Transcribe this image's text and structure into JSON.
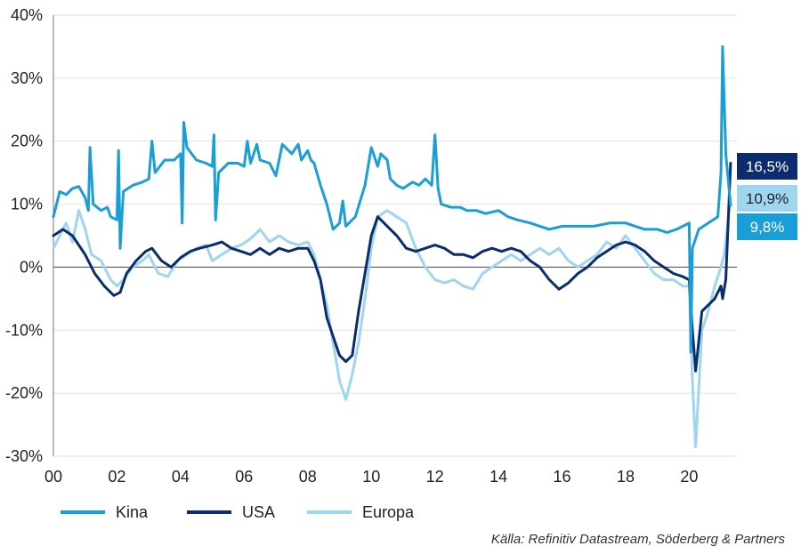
{
  "source_text": "Källa: Refinitiv Datastream, Söderberg & Partners",
  "colors": {
    "kina": "#1a9ed8",
    "usa": "#0b2d6e",
    "europa": "#9fd5ee"
  },
  "chart_data": {
    "type": "line",
    "xlim": [
      0,
      21.5
    ],
    "ylim": [
      -30,
      40
    ],
    "x_ticks": [
      0,
      2,
      4,
      6,
      8,
      10,
      12,
      14,
      16,
      18,
      20
    ],
    "x_tick_labels": [
      "00",
      "02",
      "04",
      "06",
      "08",
      "10",
      "12",
      "14",
      "16",
      "18",
      "20"
    ],
    "y_ticks": [
      -30,
      -20,
      -10,
      0,
      10,
      20,
      30,
      40
    ],
    "y_tick_labels": [
      "-30%",
      "-20%",
      "-10%",
      "0%",
      "10%",
      "20%",
      "30%",
      "40%"
    ],
    "legend_position": "bottom-left",
    "series": [
      {
        "name": "Kina",
        "end_label": "9,8%",
        "points": [
          [
            0,
            8
          ],
          [
            0.2,
            12
          ],
          [
            0.4,
            11.5
          ],
          [
            0.6,
            12.5
          ],
          [
            0.8,
            12.8
          ],
          [
            1,
            11
          ],
          [
            1.1,
            9
          ],
          [
            1.15,
            19
          ],
          [
            1.25,
            10
          ],
          [
            1.5,
            9
          ],
          [
            1.7,
            9.5
          ],
          [
            1.8,
            8
          ],
          [
            2,
            7.5
          ],
          [
            2.05,
            18.5
          ],
          [
            2.1,
            3
          ],
          [
            2.2,
            12
          ],
          [
            2.5,
            13
          ],
          [
            2.8,
            13.5
          ],
          [
            3,
            14
          ],
          [
            3.1,
            20
          ],
          [
            3.2,
            15
          ],
          [
            3.5,
            17
          ],
          [
            3.8,
            17
          ],
          [
            4,
            18
          ],
          [
            4.05,
            7
          ],
          [
            4.1,
            23
          ],
          [
            4.2,
            19
          ],
          [
            4.5,
            17
          ],
          [
            4.8,
            16.5
          ],
          [
            5,
            16
          ],
          [
            5.05,
            21
          ],
          [
            5.1,
            7.5
          ],
          [
            5.2,
            15
          ],
          [
            5.5,
            16.5
          ],
          [
            5.8,
            16.5
          ],
          [
            6,
            16
          ],
          [
            6.1,
            20
          ],
          [
            6.2,
            16.5
          ],
          [
            6.4,
            19.5
          ],
          [
            6.5,
            17
          ],
          [
            6.8,
            16.5
          ],
          [
            7,
            14.5
          ],
          [
            7.2,
            19.5
          ],
          [
            7.5,
            18
          ],
          [
            7.7,
            19.5
          ],
          [
            7.8,
            17
          ],
          [
            8,
            18.5
          ],
          [
            8.1,
            17
          ],
          [
            8.2,
            16.5
          ],
          [
            8.4,
            13
          ],
          [
            8.6,
            10
          ],
          [
            8.8,
            6
          ],
          [
            9,
            7
          ],
          [
            9.1,
            10.5
          ],
          [
            9.2,
            6.5
          ],
          [
            9.5,
            8
          ],
          [
            9.8,
            13
          ],
          [
            10,
            19
          ],
          [
            10.2,
            16
          ],
          [
            10.3,
            18
          ],
          [
            10.5,
            17
          ],
          [
            10.6,
            14
          ],
          [
            10.8,
            13
          ],
          [
            11,
            12.5
          ],
          [
            11.3,
            13.5
          ],
          [
            11.5,
            13
          ],
          [
            11.7,
            14
          ],
          [
            11.9,
            13
          ],
          [
            12,
            21
          ],
          [
            12.1,
            12.5
          ],
          [
            12.2,
            10
          ],
          [
            12.5,
            9.5
          ],
          [
            12.8,
            9.5
          ],
          [
            13,
            9
          ],
          [
            13.3,
            9
          ],
          [
            13.6,
            8.5
          ],
          [
            14,
            9
          ],
          [
            14.3,
            8
          ],
          [
            14.6,
            7.5
          ],
          [
            15,
            7
          ],
          [
            15.3,
            6.5
          ],
          [
            15.6,
            6
          ],
          [
            16,
            6.5
          ],
          [
            16.5,
            6.5
          ],
          [
            17,
            6.5
          ],
          [
            17.5,
            7
          ],
          [
            18,
            7
          ],
          [
            18.3,
            6.5
          ],
          [
            18.6,
            6
          ],
          [
            19,
            6
          ],
          [
            19.3,
            5.5
          ],
          [
            19.6,
            6
          ],
          [
            19.8,
            6.5
          ],
          [
            20,
            7
          ],
          [
            20.05,
            -13.5
          ],
          [
            20.1,
            3
          ],
          [
            20.3,
            6
          ],
          [
            20.6,
            7
          ],
          [
            20.9,
            8
          ],
          [
            21,
            15
          ],
          [
            21.05,
            35
          ],
          [
            21.15,
            18
          ],
          [
            21.3,
            9.8
          ]
        ]
      },
      {
        "name": "USA",
        "end_label": "16,5%",
        "points": [
          [
            0,
            5
          ],
          [
            0.3,
            6
          ],
          [
            0.6,
            5
          ],
          [
            1,
            2
          ],
          [
            1.3,
            -1
          ],
          [
            1.6,
            -3
          ],
          [
            1.9,
            -4.5
          ],
          [
            2.1,
            -4
          ],
          [
            2.3,
            -1
          ],
          [
            2.6,
            1
          ],
          [
            2.9,
            2.5
          ],
          [
            3.1,
            3
          ],
          [
            3.4,
            1
          ],
          [
            3.7,
            0
          ],
          [
            4,
            1.5
          ],
          [
            4.3,
            2.5
          ],
          [
            4.6,
            3
          ],
          [
            5,
            3.5
          ],
          [
            5.3,
            4
          ],
          [
            5.6,
            3
          ],
          [
            5.9,
            2.5
          ],
          [
            6.2,
            2
          ],
          [
            6.5,
            3
          ],
          [
            6.8,
            2
          ],
          [
            7.1,
            3
          ],
          [
            7.4,
            2.5
          ],
          [
            7.7,
            3
          ],
          [
            8,
            3
          ],
          [
            8.2,
            1
          ],
          [
            8.4,
            -2
          ],
          [
            8.6,
            -8
          ],
          [
            8.8,
            -11
          ],
          [
            9,
            -14
          ],
          [
            9.2,
            -15
          ],
          [
            9.4,
            -14
          ],
          [
            9.6,
            -7
          ],
          [
            9.8,
            -1
          ],
          [
            10,
            5
          ],
          [
            10.2,
            8
          ],
          [
            10.4,
            7
          ],
          [
            10.6,
            6
          ],
          [
            10.8,
            5
          ],
          [
            11.1,
            3
          ],
          [
            11.4,
            2.5
          ],
          [
            11.7,
            3
          ],
          [
            12,
            3.5
          ],
          [
            12.3,
            3
          ],
          [
            12.6,
            2
          ],
          [
            12.9,
            2
          ],
          [
            13.2,
            1.5
          ],
          [
            13.5,
            2.5
          ],
          [
            13.8,
            3
          ],
          [
            14.1,
            2.5
          ],
          [
            14.4,
            3
          ],
          [
            14.7,
            2.5
          ],
          [
            15,
            1
          ],
          [
            15.3,
            0
          ],
          [
            15.6,
            -2
          ],
          [
            15.9,
            -3.5
          ],
          [
            16.2,
            -2.5
          ],
          [
            16.5,
            -1
          ],
          [
            16.8,
            0
          ],
          [
            17.1,
            1.5
          ],
          [
            17.4,
            2.5
          ],
          [
            17.7,
            3.5
          ],
          [
            18,
            4
          ],
          [
            18.3,
            3.5
          ],
          [
            18.6,
            2.5
          ],
          [
            18.9,
            1
          ],
          [
            19.2,
            0
          ],
          [
            19.5,
            -1
          ],
          [
            19.8,
            -1.5
          ],
          [
            20,
            -2
          ],
          [
            20.1,
            -10
          ],
          [
            20.2,
            -16.5
          ],
          [
            20.4,
            -7
          ],
          [
            20.6,
            -6
          ],
          [
            20.8,
            -5
          ],
          [
            21,
            -3
          ],
          [
            21.05,
            -5
          ],
          [
            21.15,
            -2
          ],
          [
            21.3,
            16.5
          ]
        ]
      },
      {
        "name": "Europa",
        "end_label": "10,9%",
        "points": [
          [
            0,
            3
          ],
          [
            0.2,
            5
          ],
          [
            0.4,
            7
          ],
          [
            0.6,
            4
          ],
          [
            0.8,
            9
          ],
          [
            1,
            6
          ],
          [
            1.2,
            2
          ],
          [
            1.5,
            1
          ],
          [
            1.8,
            -2
          ],
          [
            2,
            -3
          ],
          [
            2.2,
            -2
          ],
          [
            2.5,
            0
          ],
          [
            2.8,
            1
          ],
          [
            3,
            2
          ],
          [
            3.3,
            -1
          ],
          [
            3.6,
            -1.5
          ],
          [
            3.9,
            1
          ],
          [
            4.2,
            2
          ],
          [
            4.5,
            3
          ],
          [
            4.8,
            3.5
          ],
          [
            5,
            1
          ],
          [
            5.3,
            2
          ],
          [
            5.6,
            3
          ],
          [
            5.9,
            3.5
          ],
          [
            6.2,
            4.5
          ],
          [
            6.5,
            6
          ],
          [
            6.8,
            4
          ],
          [
            7.1,
            5
          ],
          [
            7.4,
            4
          ],
          [
            7.7,
            3.5
          ],
          [
            8,
            4
          ],
          [
            8.2,
            2
          ],
          [
            8.4,
            -2
          ],
          [
            8.6,
            -6
          ],
          [
            8.8,
            -12
          ],
          [
            9,
            -18
          ],
          [
            9.2,
            -21
          ],
          [
            9.4,
            -17
          ],
          [
            9.6,
            -12
          ],
          [
            9.8,
            -5
          ],
          [
            10,
            3
          ],
          [
            10.2,
            8
          ],
          [
            10.5,
            9
          ],
          [
            10.8,
            8
          ],
          [
            11.1,
            7
          ],
          [
            11.4,
            3
          ],
          [
            11.7,
            0
          ],
          [
            12,
            -2
          ],
          [
            12.3,
            -2.5
          ],
          [
            12.6,
            -2
          ],
          [
            12.9,
            -3
          ],
          [
            13.2,
            -3.5
          ],
          [
            13.5,
            -1
          ],
          [
            13.8,
            0
          ],
          [
            14.1,
            1
          ],
          [
            14.4,
            2
          ],
          [
            14.7,
            1
          ],
          [
            15,
            2
          ],
          [
            15.3,
            3
          ],
          [
            15.6,
            2
          ],
          [
            15.9,
            3
          ],
          [
            16.2,
            1
          ],
          [
            16.5,
            0
          ],
          [
            16.8,
            1
          ],
          [
            17.1,
            2
          ],
          [
            17.4,
            4
          ],
          [
            17.7,
            3
          ],
          [
            18,
            5
          ],
          [
            18.3,
            3
          ],
          [
            18.6,
            1
          ],
          [
            18.9,
            -1
          ],
          [
            19.2,
            -2
          ],
          [
            19.5,
            -2
          ],
          [
            19.8,
            -3
          ],
          [
            20,
            -3
          ],
          [
            20.1,
            -18
          ],
          [
            20.2,
            -28.5
          ],
          [
            20.4,
            -10
          ],
          [
            20.6,
            -7
          ],
          [
            20.8,
            -3
          ],
          [
            21,
            0
          ],
          [
            21.1,
            2
          ],
          [
            21.3,
            10.9
          ]
        ]
      }
    ]
  }
}
